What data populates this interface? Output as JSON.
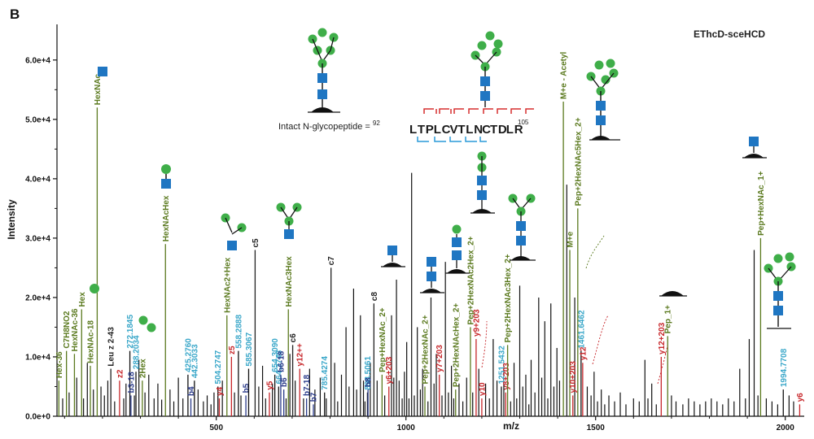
{
  "panel_label": "B",
  "method_label": "EThcD-sceHCD",
  "peptide": {
    "prefix": "Intact N-glycopeptide = ",
    "start": "92",
    "residues": [
      "L",
      "T",
      "P",
      "L",
      "C",
      "V",
      "T",
      "L",
      "N",
      "C",
      "T",
      "D",
      "L",
      "R"
    ],
    "highlight_index": 8,
    "end": "105"
  },
  "colors": {
    "cleavage_red": "#d62f2f",
    "cleavage_blue": "#2a9ad8",
    "glycan_green": "#3fae49",
    "glycan_blue": "#1f76c2",
    "label_green": "#5b7a1f",
    "label_cyan": "#3aa7c9",
    "label_red": "#c7262a",
    "label_navy": "#2a3a8a",
    "label_black": "#222222"
  },
  "chart_data": {
    "type": "mass-spectrum",
    "xlabel": "m/z",
    "ylabel": "Intensity",
    "xlim": [
      80,
      2050
    ],
    "ylim": [
      0,
      66000
    ],
    "x_ticks": [
      500,
      1000,
      1500,
      2000
    ],
    "x_tick_labels": [
      "500",
      "1000",
      "1500",
      "2000"
    ],
    "y_ticks": [
      0,
      10000,
      20000,
      30000,
      40000,
      50000,
      60000
    ],
    "y_tick_labels": [
      "0.0e+0",
      "1.0e+4",
      "2.0e+4",
      "3.0e+4",
      "4.0e+4",
      "5.0e+4",
      "6.0e+4"
    ],
    "annotated_peaks": [
      {
        "mz": 85,
        "intensity": 6000,
        "label": "Hex-36",
        "color": "green"
      },
      {
        "mz": 105,
        "intensity": 11000,
        "label": "C7H8NO2",
        "color": "green"
      },
      {
        "mz": 126,
        "intensity": 10500,
        "label": "HexNAc-36",
        "color": "green"
      },
      {
        "mz": 145,
        "intensity": 18000,
        "label": "Hex",
        "color": "green"
      },
      {
        "mz": 168,
        "intensity": 8500,
        "label": "HexNAc-18",
        "color": "green"
      },
      {
        "mz": 186,
        "intensity": 52000,
        "label": "HexNAc",
        "color": "green"
      },
      {
        "mz": 222,
        "intensity": 8000,
        "label": "Leu z 2-43",
        "color": "black"
      },
      {
        "mz": 245,
        "intensity": 6000,
        "label": "z2",
        "color": "red"
      },
      {
        "mz": 272.1845,
        "intensity": 11000,
        "label": "272.1845",
        "color": "cyan"
      },
      {
        "mz": 275,
        "intensity": 3500,
        "label": "b3-18",
        "color": "navy"
      },
      {
        "mz": 288.2034,
        "intensity": 7500,
        "label": "288.2034",
        "color": "cyan"
      },
      {
        "mz": 305,
        "intensity": 6000,
        "label": "2Hex",
        "color": "green"
      },
      {
        "mz": 366,
        "intensity": 29000,
        "label": "HexNAcHex",
        "color": "green"
      },
      {
        "mz": 425.276,
        "intensity": 7000,
        "label": "425.2760",
        "color": "cyan"
      },
      {
        "mz": 433,
        "intensity": 3000,
        "label": "b4",
        "color": "navy"
      },
      {
        "mz": 442.3033,
        "intensity": 6000,
        "label": "442.3033",
        "color": "cyan"
      },
      {
        "mz": 504.2747,
        "intensity": 5000,
        "label": "504.2747",
        "color": "cyan"
      },
      {
        "mz": 508,
        "intensity": 3000,
        "label": "y4",
        "color": "red"
      },
      {
        "mz": 528,
        "intensity": 17000,
        "label": "HexNAc2+Hex",
        "color": "green"
      },
      {
        "mz": 540,
        "intensity": 10000,
        "label": "z5",
        "color": "red"
      },
      {
        "mz": 558.2888,
        "intensity": 11000,
        "label": "558.2888",
        "color": "cyan"
      },
      {
        "mz": 578,
        "intensity": 3500,
        "label": "b5",
        "color": "navy"
      },
      {
        "mz": 585.3067,
        "intensity": 8000,
        "label": "585.3067",
        "color": "cyan"
      },
      {
        "mz": 602.3336,
        "intensity": 28000,
        "label": "c5",
        "color": "black"
      },
      {
        "mz": 640,
        "intensity": 4000,
        "label": "y5",
        "color": "red"
      },
      {
        "mz": 654.309,
        "intensity": 7000,
        "label": "654.3090",
        "color": "cyan"
      },
      {
        "mz": 664.3748,
        "intensity": 5000,
        "label": "664.3748",
        "color": "cyan"
      },
      {
        "mz": 670,
        "intensity": 7000,
        "label": "b6-18",
        "color": "navy"
      },
      {
        "mz": 678,
        "intensity": 4500,
        "label": "b6",
        "color": "navy"
      },
      {
        "mz": 690,
        "intensity": 18000,
        "label": "HexNAc3Hex",
        "color": "green"
      },
      {
        "mz": 701.4017,
        "intensity": 12000,
        "label": "c6",
        "color": "black"
      },
      {
        "mz": 720,
        "intensity": 8000,
        "label": "y12++",
        "color": "red"
      },
      {
        "mz": 738,
        "intensity": 3000,
        "label": "b7-18",
        "color": "navy"
      },
      {
        "mz": 756,
        "intensity": 2000,
        "label": "b7",
        "color": "navy"
      },
      {
        "mz": 785.4274,
        "intensity": 4000,
        "label": "785.4274",
        "color": "cyan"
      },
      {
        "mz": 802.4491,
        "intensity": 25000,
        "label": "c7",
        "color": "black"
      },
      {
        "mz": 898.5061,
        "intensity": 4000,
        "label": "898.5061",
        "color": "cyan"
      },
      {
        "mz": 900,
        "intensity": 4500,
        "label": "b8",
        "color": "navy"
      },
      {
        "mz": 915.5338,
        "intensity": 19000,
        "label": "c8",
        "color": "black"
      },
      {
        "mz": 937,
        "intensity": 7000,
        "label": "Pep+HexNAc_2+",
        "color": "green"
      },
      {
        "mz": 955,
        "intensity": 5000,
        "label": "y6+203",
        "color": "red"
      },
      {
        "mz": 1050,
        "intensity": 5000,
        "label": "Pep+2HexNAc_2+",
        "color": "green"
      },
      {
        "mz": 1088,
        "intensity": 7000,
        "label": "y7+203",
        "color": "red"
      },
      {
        "mz": 1131,
        "intensity": 4500,
        "label": "Pep+2HexNAcHex_2+",
        "color": "green"
      },
      {
        "mz": 1170,
        "intensity": 15000,
        "label": "Pep+2HexNAc2Hex_2+",
        "color": "green"
      },
      {
        "mz": 1185,
        "intensity": 13000,
        "label": "y9+203",
        "color": "red"
      },
      {
        "mz": 1200,
        "intensity": 3000,
        "label": "y10",
        "color": "red"
      },
      {
        "mz": 1251.5432,
        "intensity": 5000,
        "label": "1251.5432",
        "color": "cyan"
      },
      {
        "mz": 1263,
        "intensity": 4000,
        "label": "y8+203",
        "color": "red"
      },
      {
        "mz": 1268,
        "intensity": 12000,
        "label": "Pep+2HexNAc3Hex_2+",
        "color": "green"
      },
      {
        "mz": 1415,
        "intensity": 53000,
        "label": "M+e - Acetyl",
        "color": "green"
      },
      {
        "mz": 1432,
        "intensity": 28000,
        "label": "M+e",
        "color": "green"
      },
      {
        "mz": 1440,
        "intensity": 3500,
        "label": "y10+203",
        "color": "red"
      },
      {
        "mz": 1453,
        "intensity": 35000,
        "label": "Pep+2HexNAc5Hex_2+",
        "color": "green"
      },
      {
        "mz": 1461.6462,
        "intensity": 11000,
        "label": "1461.6462",
        "color": "cyan"
      },
      {
        "mz": 1466,
        "intensity": 9000,
        "label": "y12",
        "color": "red"
      },
      {
        "mz": 1673,
        "intensity": 10000,
        "label": "y12+203",
        "color": "red"
      },
      {
        "mz": 1690,
        "intensity": 13500,
        "label": "Pep_1+",
        "color": "green"
      },
      {
        "mz": 1935,
        "intensity": 30000,
        "label": "Pep+HexNAc_1+",
        "color": "green"
      },
      {
        "mz": 1994.7708,
        "intensity": 4500,
        "label": "1994.7708",
        "color": "cyan"
      },
      {
        "mz": 2038,
        "intensity": 2000,
        "label": "y6",
        "color": "red"
      }
    ],
    "background_peaks": [
      [
        95,
        3000
      ],
      [
        112,
        4000
      ],
      [
        132,
        6500
      ],
      [
        150,
        3000
      ],
      [
        160,
        9000
      ],
      [
        176,
        4500
      ],
      [
        196,
        5000
      ],
      [
        205,
        3500
      ],
      [
        214,
        6000
      ],
      [
        232,
        2500
      ],
      [
        256,
        3000
      ],
      [
        262,
        5500
      ],
      [
        284,
        3500
      ],
      [
        296,
        9500
      ],
      [
        312,
        4000
      ],
      [
        322,
        7000
      ],
      [
        336,
        3000
      ],
      [
        346,
        5500
      ],
      [
        356,
        2800
      ],
      [
        378,
        4500
      ],
      [
        388,
        2500
      ],
      [
        400,
        6500
      ],
      [
        412,
        3000
      ],
      [
        452,
        4500
      ],
      [
        466,
        2500
      ],
      [
        476,
        3500
      ],
      [
        486,
        2000
      ],
      [
        494,
        4000
      ],
      [
        516,
        6000
      ],
      [
        548,
        4000
      ],
      [
        565,
        3500
      ],
      [
        612,
        5000
      ],
      [
        622,
        8500
      ],
      [
        630,
        3000
      ],
      [
        648,
        5500
      ],
      [
        684,
        3000
      ],
      [
        694,
        10500
      ],
      [
        708,
        6000
      ],
      [
        730,
        3000
      ],
      [
        746,
        8000
      ],
      [
        760,
        4500
      ],
      [
        774,
        6500
      ],
      [
        790,
        3000
      ],
      [
        812,
        9000
      ],
      [
        820,
        2500
      ],
      [
        830,
        7000
      ],
      [
        842,
        15000
      ],
      [
        850,
        5000
      ],
      [
        862,
        21500
      ],
      [
        870,
        4500
      ],
      [
        880,
        17000
      ],
      [
        888,
        6000
      ],
      [
        892,
        2500
      ],
      [
        906,
        9000
      ],
      [
        924,
        6000
      ],
      [
        944,
        3500
      ],
      [
        962,
        17000
      ],
      [
        968,
        6500
      ],
      [
        975,
        23000
      ],
      [
        982,
        6000
      ],
      [
        990,
        3000
      ],
      [
        996,
        7500
      ],
      [
        1002,
        12500
      ],
      [
        1008,
        3000
      ],
      [
        1015,
        41000
      ],
      [
        1022,
        3500
      ],
      [
        1030,
        15000
      ],
      [
        1038,
        4500
      ],
      [
        1044,
        8000
      ],
      [
        1058,
        2500
      ],
      [
        1066,
        20000
      ],
      [
        1074,
        5500
      ],
      [
        1080,
        10500
      ],
      [
        1095,
        3500
      ],
      [
        1104,
        26000
      ],
      [
        1112,
        4000
      ],
      [
        1120,
        8500
      ],
      [
        1126,
        3000
      ],
      [
        1140,
        5500
      ],
      [
        1150,
        2500
      ],
      [
        1160,
        6500
      ],
      [
        1176,
        4000
      ],
      [
        1192,
        8000
      ],
      [
        1210,
        5500
      ],
      [
        1220,
        3000
      ],
      [
        1230,
        13000
      ],
      [
        1240,
        6000
      ],
      [
        1258,
        8500
      ],
      [
        1276,
        2500
      ],
      [
        1285,
        9000
      ],
      [
        1292,
        3000
      ],
      [
        1300,
        22000
      ],
      [
        1308,
        5000
      ],
      [
        1316,
        7000
      ],
      [
        1324,
        2000
      ],
      [
        1330,
        9500
      ],
      [
        1340,
        4000
      ],
      [
        1350,
        20000
      ],
      [
        1358,
        6500
      ],
      [
        1366,
        16000
      ],
      [
        1374,
        3000
      ],
      [
        1382,
        19000
      ],
      [
        1390,
        5000
      ],
      [
        1398,
        11500
      ],
      [
        1405,
        6000
      ],
      [
        1424,
        39000
      ],
      [
        1445,
        20000
      ],
      [
        1478,
        5000
      ],
      [
        1488,
        3500
      ],
      [
        1496,
        7500
      ],
      [
        1505,
        2500
      ],
      [
        1515,
        4500
      ],
      [
        1524,
        2000
      ],
      [
        1535,
        3500
      ],
      [
        1550,
        2500
      ],
      [
        1565,
        4000
      ],
      [
        1580,
        2000
      ],
      [
        1600,
        3000
      ],
      [
        1615,
        2500
      ],
      [
        1630,
        9500
      ],
      [
        1638,
        3000
      ],
      [
        1648,
        5500
      ],
      [
        1660,
        2000
      ],
      [
        1700,
        3500
      ],
      [
        1712,
        2500
      ],
      [
        1730,
        2000
      ],
      [
        1745,
        3000
      ],
      [
        1760,
        2500
      ],
      [
        1775,
        2000
      ],
      [
        1790,
        2500
      ],
      [
        1805,
        3000
      ],
      [
        1820,
        2500
      ],
      [
        1835,
        2000
      ],
      [
        1850,
        3000
      ],
      [
        1865,
        2500
      ],
      [
        1880,
        8000
      ],
      [
        1895,
        3000
      ],
      [
        1905,
        13000
      ],
      [
        1918,
        28000
      ],
      [
        1928,
        3500
      ],
      [
        1950,
        3000
      ],
      [
        1965,
        2500
      ],
      [
        1980,
        2000
      ],
      [
        2010,
        3500
      ],
      [
        2022,
        2500
      ]
    ]
  }
}
